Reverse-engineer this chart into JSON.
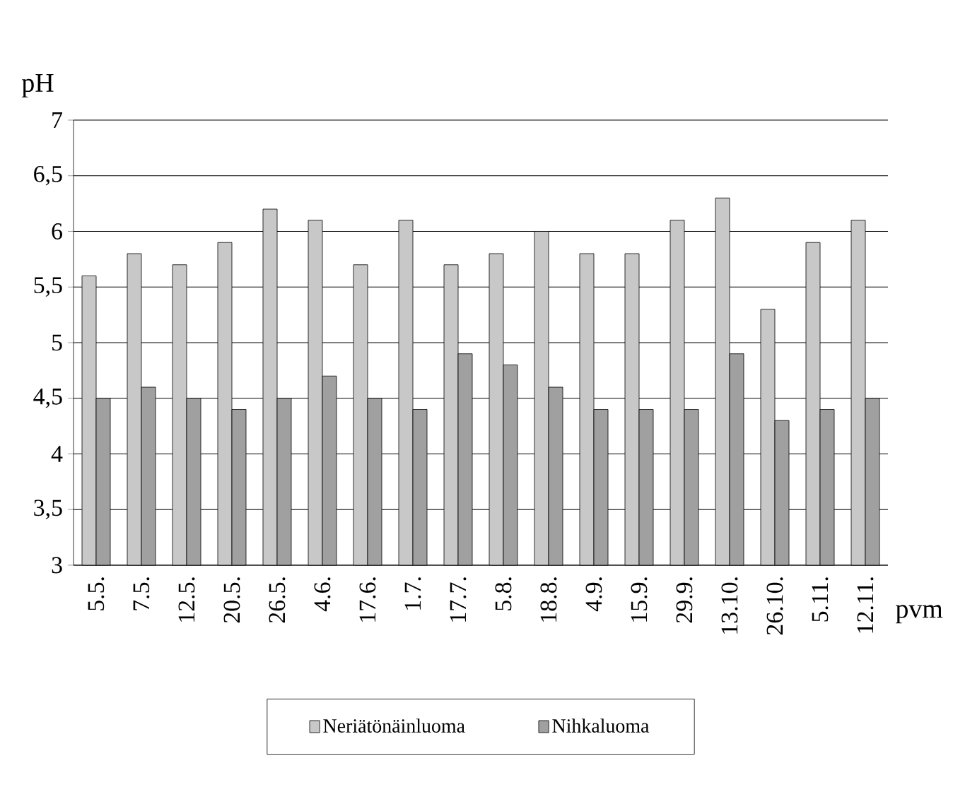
{
  "chart_data": {
    "type": "bar",
    "xlabel": "pvm",
    "ylabel": "pH",
    "categories": [
      "5.5.",
      "7.5.",
      "12.5.",
      "20.5.",
      "26.5.",
      "4.6.",
      "17.6.",
      "1.7.",
      "17.7.",
      "5.8.",
      "18.8.",
      "4.9.",
      "15.9.",
      "29.9.",
      "13.10.",
      "26.10.",
      "5.11.",
      "12.11."
    ],
    "series": [
      {
        "name": "Neriätönäinluoma",
        "color": "#c8c8c8",
        "values": [
          5.6,
          5.8,
          5.7,
          5.9,
          6.2,
          6.1,
          5.7,
          6.1,
          5.7,
          5.8,
          6.0,
          5.8,
          5.8,
          6.1,
          6.3,
          5.3,
          5.9,
          6.1
        ]
      },
      {
        "name": "Nihkaluoma",
        "color": "#a0a0a0",
        "values": [
          4.5,
          4.6,
          4.5,
          4.4,
          4.5,
          4.7,
          4.5,
          4.4,
          4.9,
          4.8,
          4.6,
          4.4,
          4.4,
          4.4,
          4.9,
          4.3,
          4.4,
          4.5
        ]
      }
    ],
    "ylim": [
      3,
      7
    ],
    "yticks": [
      3,
      {
        "value": 3.5,
        "label": "3,5"
      },
      4,
      {
        "value": 4.5,
        "label": "4,5"
      },
      5,
      {
        "value": 5.5,
        "label": "5,5"
      },
      6,
      {
        "value": 6.5,
        "label": "6,5"
      },
      7
    ],
    "grid": "y",
    "legend": "bottom"
  }
}
